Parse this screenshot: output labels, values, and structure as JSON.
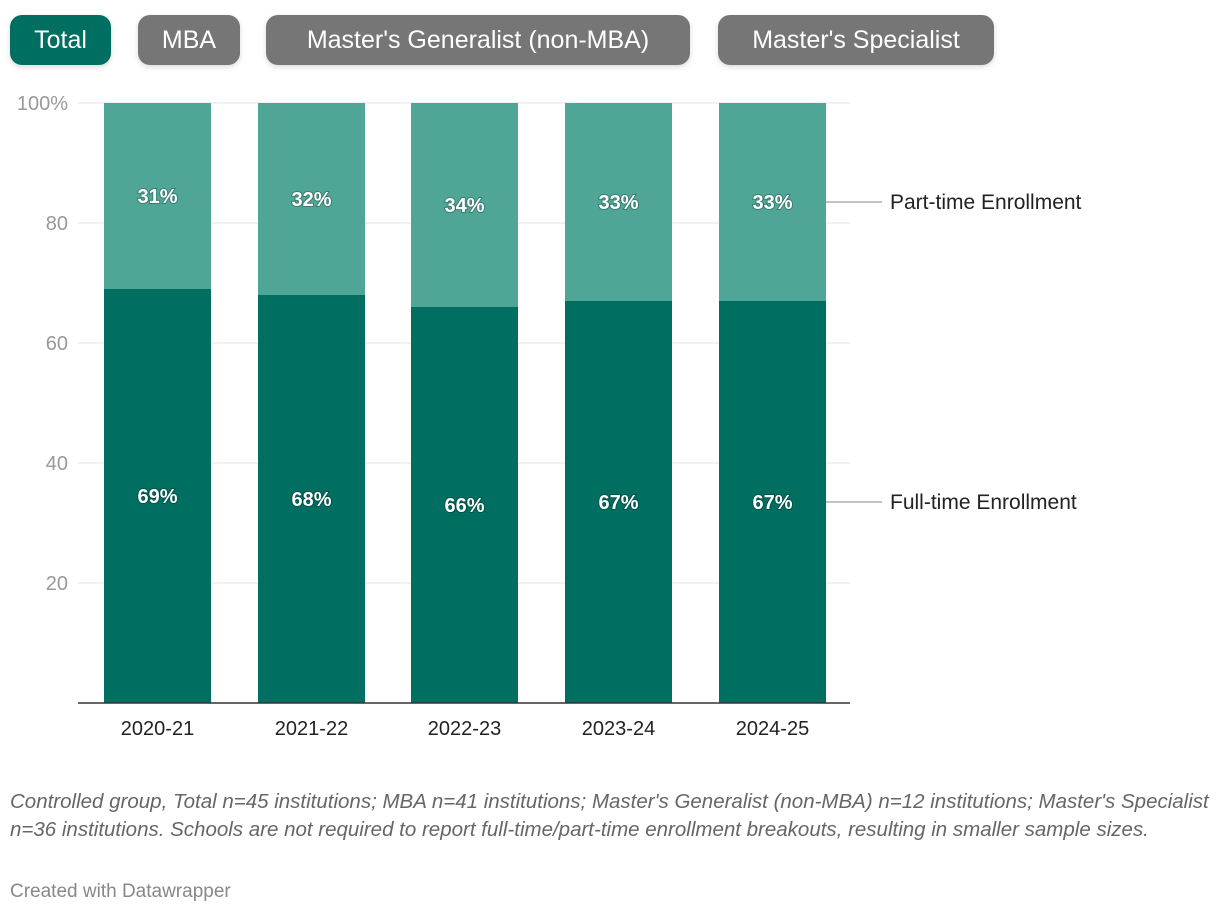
{
  "buttons": [
    {
      "label": "Total",
      "active": true
    },
    {
      "label": "MBA",
      "active": false
    },
    {
      "label": "Master's Generalist (non-MBA)",
      "active": false
    },
    {
      "label": "Master's Specialist",
      "active": false
    }
  ],
  "colors": {
    "full_time": "#006e61",
    "part_time": "#4fa697",
    "active_button": "#006e61",
    "inactive_button": "#767676"
  },
  "chart_data": {
    "type": "bar",
    "stacked": true,
    "categories": [
      "2020-21",
      "2021-22",
      "2022-23",
      "2023-24",
      "2024-25"
    ],
    "series": [
      {
        "name": "Full-time Enrollment",
        "values": [
          69,
          68,
          66,
          67,
          67
        ]
      },
      {
        "name": "Part-time Enrollment",
        "values": [
          31,
          32,
          34,
          33,
          33
        ]
      }
    ],
    "ylim": [
      0,
      100
    ],
    "yticks": [
      {
        "v": 100,
        "label": "100%"
      },
      {
        "v": 80,
        "label": "80"
      },
      {
        "v": 60,
        "label": "60"
      },
      {
        "v": 40,
        "label": "40"
      },
      {
        "v": 20,
        "label": "20"
      }
    ],
    "grid": true,
    "legend": "right, inline labels"
  },
  "footnote": "Controlled group, Total n=45 institutions; MBA n=41 institutions; Master's Generalist (non-MBA) n=12 institutions; Master's Specialist n=36 institutions. Schools are not required to report full-time/part-time enrollment breakouts, resulting in smaller sample sizes.",
  "credit": "Created with Datawrapper"
}
